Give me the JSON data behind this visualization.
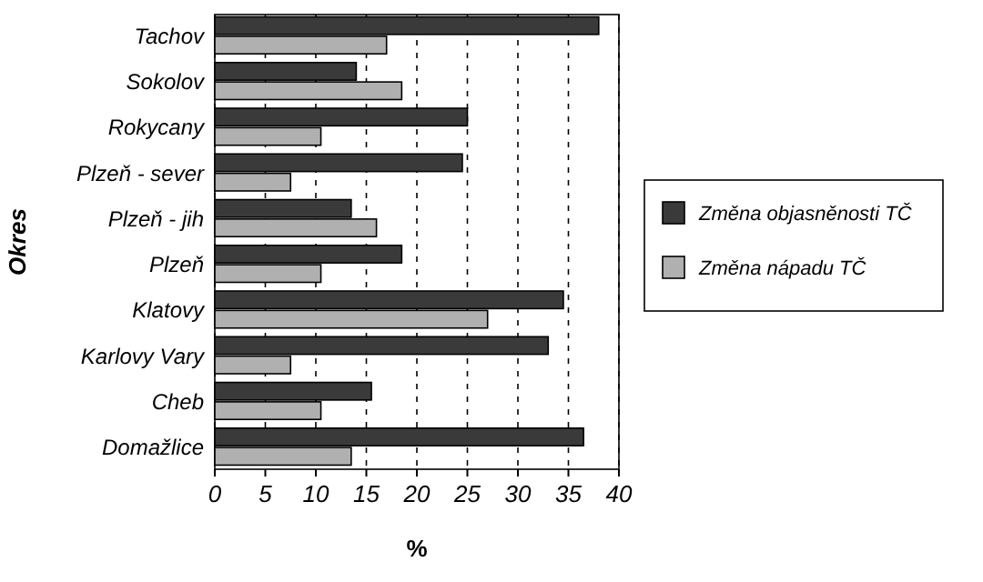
{
  "chart_data": {
    "type": "bar",
    "orientation": "horizontal",
    "xlabel": "%",
    "ylabel": "Okres",
    "categories": [
      "Tachov",
      "Sokolov",
      "Rokycany",
      "Plzeň - sever",
      "Plzeň - jih",
      "Plzeň",
      "Klatovy",
      "Karlovy Vary",
      "Cheb",
      "Domažlice"
    ],
    "series": [
      {
        "name": "Změna objasněnosti TČ",
        "color": "#3a3a3a",
        "values": [
          38,
          14,
          25,
          24.5,
          13.5,
          18.5,
          34.5,
          33,
          15.5,
          36.5
        ]
      },
      {
        "name": "Změna nápadu TČ",
        "color": "#b0b0b0",
        "values": [
          17,
          18.5,
          10.5,
          7.5,
          16,
          10.5,
          27,
          7.5,
          10.5,
          13.5
        ]
      }
    ],
    "xlim": [
      0,
      40
    ],
    "xticks": [
      0,
      5,
      10,
      15,
      20,
      25,
      30,
      35,
      40
    ],
    "grid": "x",
    "legend": "right"
  }
}
